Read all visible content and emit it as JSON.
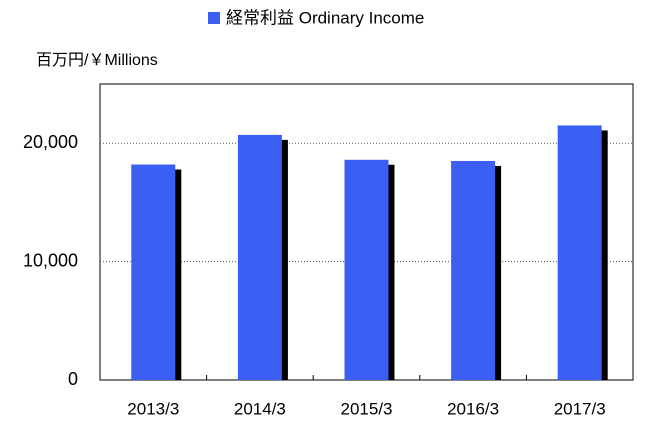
{
  "chart_data": {
    "type": "bar",
    "y_axis_label": "百万円/￥Millions",
    "categories": [
      "2013/3",
      "2014/3",
      "2015/3",
      "2016/3",
      "2017/3"
    ],
    "series": [
      {
        "name": "経常利益 Ordinary Income",
        "color": "#3b5ff2",
        "values": [
          18200,
          20700,
          18600,
          18500,
          21500
        ]
      }
    ],
    "ylim": [
      0,
      25000
    ],
    "yticks": [
      {
        "value": 0,
        "label": "0"
      },
      {
        "value": 10000,
        "label": "10,000"
      },
      {
        "value": 20000,
        "label": "20,000"
      }
    ],
    "grid": true
  }
}
